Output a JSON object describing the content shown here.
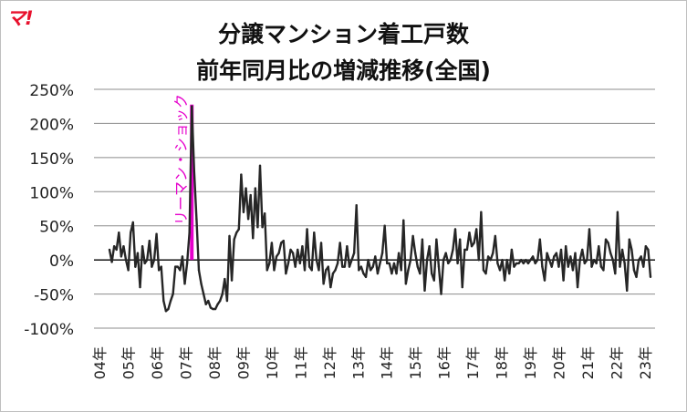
{
  "logo": {
    "text": "マ!"
  },
  "chart_data": {
    "type": "line",
    "title": "分譲マンション着工戸数",
    "subtitle": "前年同月比の増減推移(全国)",
    "xlabel": "",
    "ylabel": "",
    "ylim": [
      -100,
      250
    ],
    "y_ticks": [
      -100,
      -50,
      0,
      50,
      100,
      150,
      200,
      250
    ],
    "y_tick_labels": [
      "-100%",
      "-50%",
      "0%",
      "50%",
      "100%",
      "150%",
      "200%",
      "250%"
    ],
    "x_tick_labels": [
      "04年",
      "05年",
      "06年",
      "07年",
      "08年",
      "09年",
      "10年",
      "11年",
      "12年",
      "13年",
      "14年",
      "15年",
      "16年",
      "17年",
      "18年",
      "19年",
      "20年",
      "21年",
      "22年",
      "23年"
    ],
    "grid": true,
    "legend": "none",
    "series": [
      {
        "values": [
          15,
          -3,
          20,
          15,
          40,
          5,
          20,
          0,
          -15,
          40,
          55,
          -10,
          10,
          -40,
          20,
          -5,
          0,
          28,
          -10,
          0,
          38,
          -15,
          -10,
          -60,
          -75,
          -72,
          -60,
          -50,
          -10,
          -10,
          -15,
          5,
          -35,
          -5,
          40,
          225,
          130,
          60,
          -15,
          -35,
          -50,
          -65,
          -60,
          -70,
          -72,
          -72,
          -65,
          -60,
          -50,
          -28,
          -60,
          35,
          -30,
          30,
          40,
          45,
          125,
          70,
          105,
          60,
          95,
          32,
          105,
          48,
          138,
          48,
          68,
          -15,
          -5,
          25,
          -15,
          5,
          10,
          25,
          28,
          -20,
          -5,
          15,
          10,
          -10,
          15,
          -5,
          20,
          -15,
          45,
          -10,
          -15,
          40,
          0,
          -15,
          25,
          -35,
          -15,
          -10,
          -40,
          -20,
          -15,
          -5,
          25,
          -10,
          -10,
          20,
          -10,
          0,
          10,
          80,
          -15,
          -10,
          -20,
          -25,
          0,
          -15,
          -10,
          5,
          -20,
          -5,
          10,
          50,
          -5,
          -5,
          -20,
          -5,
          -20,
          10,
          -15,
          58,
          -35,
          -15,
          0,
          35,
          10,
          -10,
          -20,
          30,
          -45,
          0,
          20,
          -20,
          -30,
          30,
          -10,
          -50,
          0,
          10,
          -5,
          0,
          15,
          45,
          -5,
          30,
          -40,
          15,
          15,
          40,
          20,
          25,
          45,
          0,
          70,
          -15,
          -20,
          5,
          0,
          10,
          35,
          -5,
          -15,
          0,
          -30,
          0,
          -20,
          15,
          -10,
          -5,
          -5,
          0,
          -5,
          0,
          -5,
          0,
          5,
          -5,
          0,
          30,
          -10,
          -30,
          10,
          0,
          -10,
          5,
          10,
          -10,
          15,
          -30,
          20,
          -10,
          5,
          -15,
          10,
          -40,
          0,
          15,
          -5,
          0,
          45,
          -10,
          0,
          -5,
          20,
          -10,
          -15,
          30,
          25,
          10,
          0,
          -20,
          70,
          -10,
          15,
          -5,
          -45,
          30,
          15,
          -15,
          -25,
          0,
          5,
          -10,
          20,
          15,
          -25
        ]
      }
    ],
    "annotation": {
      "text": "リーマン・ショック",
      "at_index": 35,
      "color": "#e600cc"
    }
  }
}
